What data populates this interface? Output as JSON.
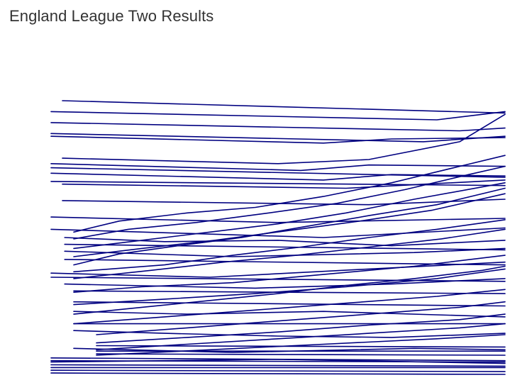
{
  "title": "England League Two Results",
  "chart_data": {
    "type": "line",
    "title": "England League Two Results",
    "xlabel": "",
    "ylabel": "",
    "axes_visible": false,
    "grid": false,
    "legend": "none",
    "line_color": "#000080",
    "xlim": [
      0,
      10
    ],
    "ylim": [
      0,
      10
    ],
    "series": [
      {
        "x": [
          0.25,
          10.0
        ],
        "y": [
          10.0,
          9.55
        ]
      },
      {
        "x": [
          0.0,
          8.5,
          10.0
        ],
        "y": [
          9.6,
          9.3,
          9.6
        ]
      },
      {
        "x": [
          0.0,
          9.0,
          10.0
        ],
        "y": [
          9.2,
          8.9,
          9.0
        ]
      },
      {
        "x": [
          0.0,
          8.2,
          10.0
        ],
        "y": [
          8.8,
          8.5,
          8.7
        ]
      },
      {
        "x": [
          0.0,
          6.0,
          7.5,
          10.0
        ],
        "y": [
          8.7,
          8.45,
          8.6,
          8.65
        ]
      },
      {
        "x": [
          0.25,
          5.0,
          7.0,
          9.0,
          10.0
        ],
        "y": [
          7.9,
          7.7,
          7.85,
          8.5,
          9.5
        ]
      },
      {
        "x": [
          0.0,
          5.5,
          7.0,
          10.0
        ],
        "y": [
          7.7,
          7.45,
          7.65,
          7.6
        ]
      },
      {
        "x": [
          0.0,
          10.0
        ],
        "y": [
          7.55,
          7.2
        ]
      },
      {
        "x": [
          0.0,
          6.0,
          7.5,
          10.0
        ],
        "y": [
          7.35,
          7.1,
          7.3,
          7.25
        ]
      },
      {
        "x": [
          0.0,
          10.0
        ],
        "y": [
          7.05,
          6.9
        ]
      },
      {
        "x": [
          0.25,
          6.5,
          10.0
        ],
        "y": [
          6.95,
          6.8,
          7.1
        ]
      },
      {
        "x": [
          0.25,
          7.0,
          10.0
        ],
        "y": [
          6.35,
          6.2,
          6.4
        ]
      },
      {
        "x": [
          0.0,
          5.0,
          10.0
        ],
        "y": [
          5.75,
          5.55,
          5.7
        ]
      },
      {
        "x": [
          0.5,
          1.5,
          3.0,
          4.5,
          6.0,
          7.5,
          9.0,
          10.0
        ],
        "y": [
          5.2,
          5.6,
          5.9,
          6.1,
          6.5,
          7.0,
          7.6,
          8.0
        ]
      },
      {
        "x": [
          0.5,
          1.7,
          3.2,
          4.8,
          6.3,
          7.8,
          9.2,
          10.0
        ],
        "y": [
          4.95,
          5.3,
          5.55,
          5.9,
          6.25,
          6.75,
          7.3,
          7.6
        ]
      },
      {
        "x": [
          0.5,
          2.0,
          3.5,
          5.0,
          6.5,
          8.0,
          10.0
        ],
        "y": [
          4.6,
          4.9,
          5.2,
          5.5,
          5.9,
          6.4,
          7.0
        ]
      },
      {
        "x": [
          0.5,
          2.0,
          3.6,
          5.2,
          6.8,
          8.4,
          10.0
        ],
        "y": [
          4.3,
          4.6,
          4.9,
          5.25,
          5.6,
          6.0,
          6.6
        ]
      },
      {
        "x": [
          0.5,
          1.5,
          2.8,
          4.2,
          5.6,
          7.0,
          8.5,
          10.0
        ],
        "y": [
          4.0,
          4.4,
          4.7,
          5.0,
          5.4,
          5.8,
          6.2,
          6.8
        ]
      },
      {
        "x": [
          0.5,
          2.5,
          4.0,
          5.5,
          7.0,
          8.5,
          10.0
        ],
        "y": [
          3.75,
          4.0,
          4.35,
          4.65,
          5.0,
          5.3,
          5.65
        ]
      },
      {
        "x": [
          0.5,
          2.2,
          3.8,
          5.4,
          7.0,
          8.6,
          10.0
        ],
        "y": [
          3.5,
          3.8,
          4.1,
          4.35,
          4.65,
          4.95,
          5.3
        ]
      },
      {
        "x": [
          0.0,
          3.0,
          6.0,
          10.0
        ],
        "y": [
          5.3,
          5.15,
          5.0,
          5.35
        ]
      },
      {
        "x": [
          0.3,
          2.5,
          5.0,
          7.5,
          10.0
        ],
        "y": [
          5.0,
          4.85,
          4.9,
          4.7,
          4.9
        ]
      },
      {
        "x": [
          0.3,
          10.0
        ],
        "y": [
          4.75,
          4.55
        ]
      },
      {
        "x": [
          0.3,
          4.0,
          8.0,
          10.0
        ],
        "y": [
          4.5,
          4.3,
          4.45,
          4.6
        ]
      },
      {
        "x": [
          0.3,
          10.0
        ],
        "y": [
          4.2,
          4.0
        ]
      },
      {
        "x": [
          0.0,
          3.5,
          7.0,
          10.0
        ],
        "y": [
          3.7,
          3.55,
          3.85,
          4.1
        ]
      },
      {
        "x": [
          0.0,
          10.0
        ],
        "y": [
          3.55,
          3.4
        ]
      },
      {
        "x": [
          0.3,
          4.5,
          7.5,
          10.0
        ],
        "y": [
          3.3,
          3.15,
          3.3,
          3.5
        ]
      },
      {
        "x": [
          0.5,
          10.0
        ],
        "y": [
          3.05,
          2.95
        ]
      },
      {
        "x": [
          0.5,
          2.0,
          4.0,
          6.0,
          8.0,
          10.0
        ],
        "y": [
          3.0,
          3.2,
          3.35,
          3.65,
          3.95,
          4.35
        ]
      },
      {
        "x": [
          0.5,
          2.5,
          4.5,
          6.5,
          8.5,
          10.0
        ],
        "y": [
          2.55,
          2.75,
          2.95,
          3.2,
          3.5,
          3.85
        ]
      },
      {
        "x": [
          0.5,
          2.0,
          3.5,
          5.0,
          6.5,
          8.0,
          9.5,
          10.0
        ],
        "y": [
          2.2,
          2.45,
          2.7,
          2.95,
          3.25,
          3.5,
          3.8,
          3.95
        ]
      },
      {
        "x": [
          0.5,
          2.5,
          4.5,
          6.5,
          8.5,
          10.0
        ],
        "y": [
          1.85,
          2.1,
          2.35,
          2.6,
          2.85,
          3.1
        ]
      },
      {
        "x": [
          1.0,
          3.0,
          5.0,
          7.0,
          9.0,
          10.0
        ],
        "y": [
          1.45,
          1.7,
          1.95,
          2.2,
          2.45,
          2.65
        ]
      },
      {
        "x": [
          1.0,
          3.0,
          5.0,
          7.0,
          9.0,
          10.0
        ],
        "y": [
          1.15,
          1.35,
          1.55,
          1.8,
          2.0,
          2.2
        ]
      },
      {
        "x": [
          1.0,
          3.0,
          5.0,
          7.0,
          9.0,
          10.0
        ],
        "y": [
          0.9,
          1.1,
          1.3,
          1.5,
          1.7,
          1.85
        ]
      },
      {
        "x": [
          1.0,
          3.5,
          6.0,
          8.5,
          10.0
        ],
        "y": [
          0.7,
          0.9,
          1.1,
          1.3,
          1.45
        ]
      },
      {
        "x": [
          0.5,
          10.0
        ],
        "y": [
          2.65,
          2.5
        ]
      },
      {
        "x": [
          0.5,
          3.0,
          6.0,
          10.0
        ],
        "y": [
          2.3,
          2.2,
          2.3,
          2.1
        ]
      },
      {
        "x": [
          0.5,
          10.0
        ],
        "y": [
          1.85,
          1.85
        ]
      },
      {
        "x": [
          0.5,
          2.5,
          5.0,
          7.5,
          10.0
        ],
        "y": [
          1.6,
          1.5,
          1.4,
          1.35,
          1.5
        ]
      },
      {
        "x": [
          1.0,
          10.0
        ],
        "y": [
          1.05,
          1.0
        ]
      },
      {
        "x": [
          1.0,
          10.0
        ],
        "y": [
          0.85,
          0.85
        ]
      },
      {
        "x": [
          1.0,
          10.0
        ],
        "y": [
          0.75,
          0.7
        ]
      },
      {
        "x": [
          0.0,
          10.0
        ],
        "y": [
          0.6,
          0.5
        ]
      },
      {
        "x": [
          0.0,
          10.0
        ],
        "y": [
          0.5,
          0.45
        ]
      },
      {
        "x": [
          0.0,
          10.0
        ],
        "y": [
          0.35,
          0.3
        ]
      },
      {
        "x": [
          0.0,
          10.0
        ],
        "y": [
          0.25,
          0.25
        ]
      },
      {
        "x": [
          0.0,
          10.0
        ],
        "y": [
          0.15,
          0.1
        ]
      },
      {
        "x": [
          0.0,
          10.0
        ],
        "y": [
          0.05,
          0.0
        ]
      },
      {
        "x": [
          0.0,
          5.0,
          10.0
        ],
        "y": [
          0.45,
          0.55,
          0.4
        ]
      },
      {
        "x": [
          0.5,
          4.0,
          8.0,
          10.0
        ],
        "y": [
          0.95,
          0.8,
          0.95,
          0.9
        ]
      }
    ]
  }
}
